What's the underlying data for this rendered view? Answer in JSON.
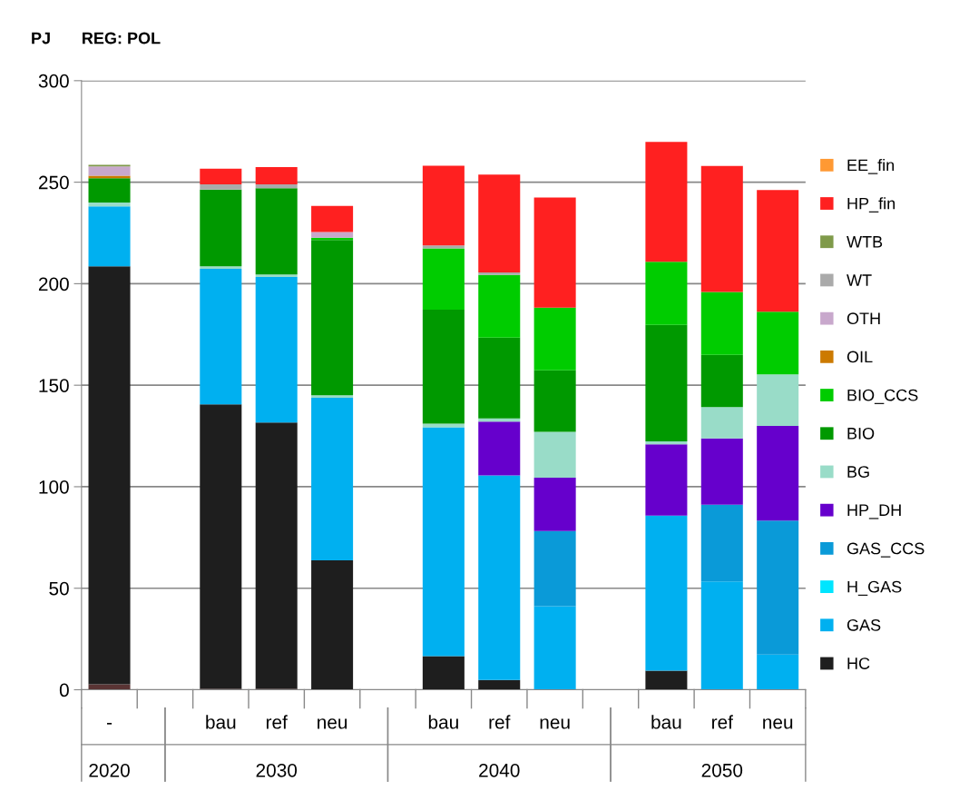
{
  "chart_data": {
    "type": "bar",
    "stacked": true,
    "title": "REG: POL",
    "ylabel": "PJ",
    "categories": [
      "-",
      null,
      "bau",
      "ref",
      "neu",
      null,
      "bau",
      "ref",
      "neu",
      null,
      "bau",
      "ref",
      "neu"
    ],
    "annotations": [
      "2020",
      "2030",
      "2040",
      "2050"
    ],
    "ylim": [
      0,
      300
    ],
    "yticks": [
      0,
      50,
      100,
      150,
      200,
      250,
      300
    ],
    "grid": "y",
    "legend": "right",
    "series": [
      {
        "color": "#5a3434",
        "values": [
          2.7,
          0,
          0.5,
          0.5,
          0,
          0,
          0,
          0,
          0,
          0,
          0,
          0,
          0
        ]
      },
      {
        "name": "HC",
        "color": "#1e1e1e",
        "values": [
          205.9,
          0,
          140.1,
          131.1,
          63.7,
          0,
          16.6,
          4.8,
          0,
          0,
          9.4,
          0,
          0
        ]
      },
      {
        "name": "GAS",
        "color": "#00b0f0",
        "values": [
          29.5,
          0,
          66.7,
          71.7,
          80.1,
          0,
          112.7,
          100.8,
          41.2,
          0,
          76.4,
          53.4,
          17.3
        ]
      },
      {
        "name": "H_GAS",
        "color": "#00e5ff",
        "values": [
          0,
          0,
          0,
          0,
          0,
          0,
          0,
          0,
          0,
          0,
          0,
          0,
          0
        ]
      },
      {
        "name": "GAS_CCS",
        "color": "#0a9ad8",
        "values": [
          0,
          0,
          0,
          0,
          0,
          0,
          0,
          0,
          37,
          0,
          0,
          37.8,
          66
        ]
      },
      {
        "name": "HP_DH",
        "color": "#6600cc",
        "values": [
          0,
          0,
          0,
          0,
          0,
          0,
          0,
          26.5,
          26.2,
          0,
          35.1,
          32.6,
          46.6
        ]
      },
      {
        "name": "BG",
        "color": "#99dcc8",
        "values": [
          1.9,
          0,
          1.3,
          1.2,
          1.3,
          0,
          1.8,
          1.5,
          22.6,
          0,
          1.4,
          15.4,
          25.4
        ]
      },
      {
        "name": "BIO",
        "color": "#009900",
        "values": [
          12,
          0,
          37.8,
          42.5,
          76.4,
          0,
          56.1,
          39.8,
          30.3,
          0,
          57.4,
          25.8,
          0
        ]
      },
      {
        "name": "BIO_CCS",
        "color": "#00cc00",
        "values": [
          0,
          0,
          0,
          0,
          1.2,
          0,
          30.2,
          30.9,
          30.9,
          0,
          31.1,
          30.9,
          30.9
        ]
      },
      {
        "name": "OIL",
        "color": "#cc7a00",
        "values": [
          1.2,
          0,
          0,
          0,
          0,
          0,
          0,
          0,
          0,
          0,
          0,
          0,
          0
        ]
      },
      {
        "name": "OTH",
        "color": "#c8a8cc",
        "values": [
          4.6,
          0,
          0,
          0,
          2.8,
          0,
          0,
          0,
          0,
          0,
          0,
          0,
          0
        ]
      },
      {
        "name": "WT",
        "color": "#aaaaaa",
        "values": [
          0,
          0,
          2.5,
          1.9,
          0,
          0,
          1.4,
          1.2,
          0,
          0,
          0,
          0,
          0
        ]
      },
      {
        "name": "WTB",
        "color": "#7f9a4a",
        "values": [
          0.8,
          0,
          0,
          0,
          0,
          0,
          0,
          0,
          0,
          0,
          0,
          0,
          0
        ]
      },
      {
        "name": "HP_fin",
        "color": "#ff2020",
        "values": [
          0,
          0,
          7.8,
          8.5,
          12.8,
          0,
          39.3,
          48.3,
          54.2,
          0,
          59.1,
          62.1,
          59.9
        ]
      },
      {
        "name": "EE_fin",
        "color": "#ff9933",
        "values": [
          0,
          0,
          0,
          0,
          0,
          0,
          0,
          0,
          0,
          0,
          0,
          0,
          0
        ]
      }
    ]
  }
}
